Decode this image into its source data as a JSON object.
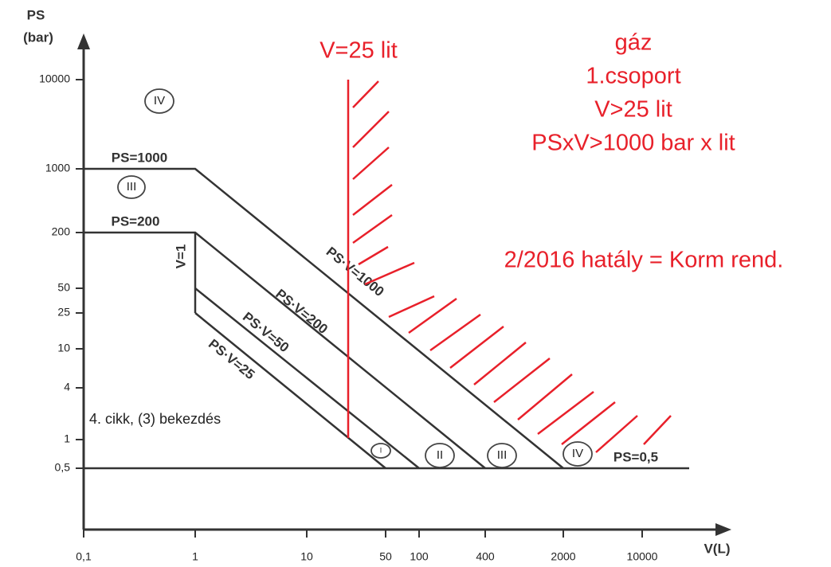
{
  "axes": {
    "y_label": "PS",
    "y_unit": "(bar)",
    "x_label": "V(L)",
    "yticks": [
      "10000",
      "1000",
      "200",
      "50",
      "25",
      "10",
      "4",
      "1",
      "0,5"
    ],
    "xticks": [
      "0,1",
      "1",
      "10",
      "50",
      "100",
      "400",
      "2000",
      "10000"
    ]
  },
  "lines": {
    "ps1000": "PS=1000",
    "ps200": "PS=200",
    "v1": "V=1",
    "psv1000": "PS·V=1000",
    "psv200": "PS·V=200",
    "psv50": "PS·V=50",
    "psv25": "PS·V=25",
    "ps05": "PS=0,5"
  },
  "regions": [
    "IV",
    "III",
    "I",
    "II",
    "III",
    "IV"
  ],
  "note": "4. cikk, (3) bekezdés",
  "red": {
    "line_label": "V=25 lit",
    "block": [
      "gáz",
      "1.csoport",
      "V>25 lit",
      "PSxV>1000 bar x lit"
    ],
    "decree": "2/2016 hatály = Korm rend."
  }
}
